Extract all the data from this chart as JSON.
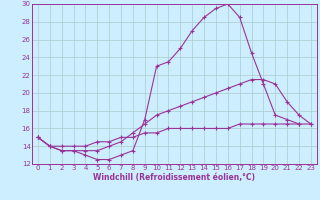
{
  "xlabel": "Windchill (Refroidissement éolien,°C)",
  "background_color": "#cceeff",
  "grid_color": "#aacccc",
  "line_color": "#993399",
  "spine_color": "#993399",
  "xlim": [
    -0.5,
    23.5
  ],
  "ylim": [
    12,
    30
  ],
  "xticks": [
    0,
    1,
    2,
    3,
    4,
    5,
    6,
    7,
    8,
    9,
    10,
    11,
    12,
    13,
    14,
    15,
    16,
    17,
    18,
    19,
    20,
    21,
    22,
    23
  ],
  "yticks": [
    12,
    14,
    16,
    18,
    20,
    22,
    24,
    26,
    28,
    30
  ],
  "series": [
    [
      15.0,
      14.0,
      13.5,
      13.5,
      13.0,
      12.5,
      12.5,
      13.0,
      13.5,
      17.0,
      23.0,
      23.5,
      25.0,
      27.0,
      28.5,
      29.5,
      30.0,
      28.5,
      24.5,
      21.0,
      17.5,
      17.0,
      16.5
    ],
    [
      15.0,
      14.0,
      13.5,
      13.5,
      13.5,
      13.5,
      14.0,
      14.5,
      15.5,
      16.5,
      17.5,
      18.0,
      18.5,
      19.0,
      19.5,
      20.0,
      20.5,
      21.0,
      21.5,
      21.5,
      21.0,
      19.0,
      17.5,
      16.5
    ],
    [
      15.0,
      14.0,
      14.0,
      14.0,
      14.0,
      14.5,
      14.5,
      15.0,
      15.0,
      15.5,
      15.5,
      16.0,
      16.0,
      16.0,
      16.0,
      16.0,
      16.0,
      16.5,
      16.5,
      16.5,
      16.5,
      16.5,
      16.5,
      16.5
    ]
  ],
  "tick_fontsize": 5,
  "xlabel_fontsize": 5.5,
  "marker": "+",
  "markersize": 3,
  "linewidth": 0.8
}
